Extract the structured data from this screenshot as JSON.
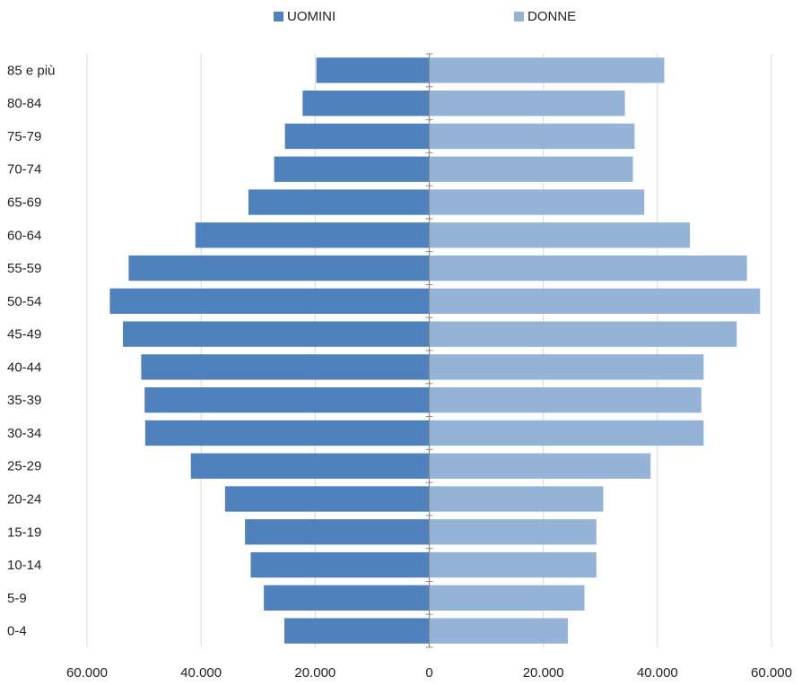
{
  "chart_data": {
    "type": "bar",
    "orientation": "horizontal",
    "categories": [
      "85 e più",
      "80-84",
      "75-79",
      "70-74",
      "65-69",
      "60-64",
      "55-59",
      "50-54",
      "45-49",
      "40-44",
      "35-39",
      "30-34",
      "25-29",
      "20-24",
      "15-19",
      "10-14",
      "5-9",
      "0-4"
    ],
    "series": [
      {
        "name": "UOMINI",
        "color": "#4f81bd",
        "values": [
          19800,
          22200,
          25300,
          27200,
          31700,
          41000,
          52700,
          56000,
          53700,
          50500,
          49900,
          49800,
          41800,
          35800,
          32300,
          31300,
          29000,
          25400
        ]
      },
      {
        "name": "DONNE",
        "color": "#95b3d7",
        "values": [
          41200,
          34300,
          36000,
          35700,
          37700,
          45700,
          55700,
          58000,
          53900,
          48100,
          47700,
          48100,
          38800,
          30500,
          29300,
          29300,
          27200,
          24300
        ]
      }
    ],
    "xlim": [
      -60000,
      60000
    ],
    "xticks": [
      -60000,
      -40000,
      -20000,
      0,
      20000,
      40000,
      60000
    ],
    "xtick_labels": [
      "60.000",
      "40.000",
      "20.000",
      "0",
      "20.000",
      "40.000",
      "60.000"
    ],
    "grid": true,
    "legend_position": "top"
  }
}
